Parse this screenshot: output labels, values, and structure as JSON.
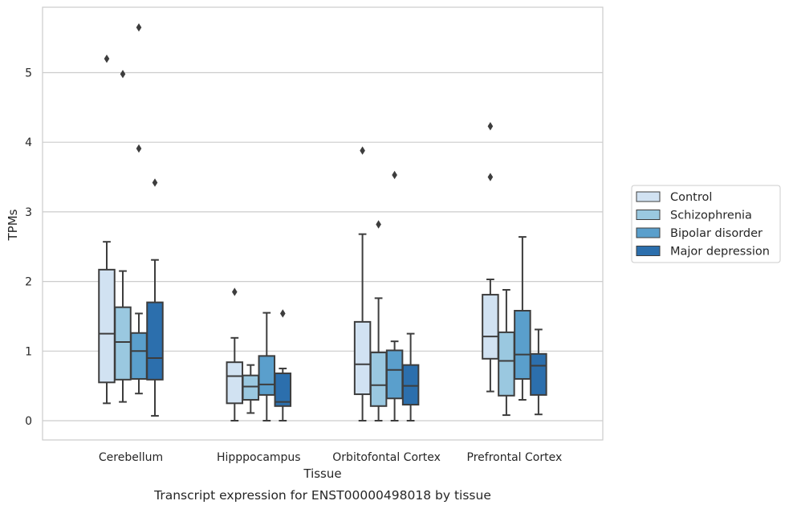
{
  "chart_data": {
    "type": "box",
    "caption": "Transcript expression for ENST00000498018 by tissue",
    "xlabel": "Tissue",
    "ylabel": "TPMs",
    "ylim": [
      -0.27,
      5.95
    ],
    "yticks": [
      0,
      1,
      2,
      3,
      4,
      5
    ],
    "grid": "horizontal",
    "legend_position": "right",
    "categories": [
      "Cerebellum",
      "Hipppocampus",
      "Orbitofontal Cortex",
      "Prefrontal Cortex"
    ],
    "series": [
      {
        "name": "Control",
        "color": "#d1e2f2",
        "boxes": [
          {
            "whisker_low": 0.25,
            "q1": 0.55,
            "median": 1.25,
            "q3": 2.17,
            "whisker_high": 2.57,
            "outliers": [
              5.2
            ]
          },
          {
            "whisker_low": 0.0,
            "q1": 0.25,
            "median": 0.64,
            "q3": 0.84,
            "whisker_high": 1.19,
            "outliers": [
              1.85
            ]
          },
          {
            "whisker_low": 0.0,
            "q1": 0.38,
            "median": 0.81,
            "q3": 1.42,
            "whisker_high": 2.68,
            "outliers": [
              3.88
            ]
          },
          {
            "whisker_low": 0.42,
            "q1": 0.89,
            "median": 1.21,
            "q3": 1.81,
            "whisker_high": 2.03,
            "outliers": [
              4.23,
              3.5
            ]
          }
        ]
      },
      {
        "name": "Schizophrenia",
        "color": "#9ac8e0",
        "boxes": [
          {
            "whisker_low": 0.27,
            "q1": 0.59,
            "median": 1.13,
            "q3": 1.63,
            "whisker_high": 2.15,
            "outliers": [
              4.98
            ]
          },
          {
            "whisker_low": 0.11,
            "q1": 0.3,
            "median": 0.49,
            "q3": 0.65,
            "whisker_high": 0.8,
            "outliers": []
          },
          {
            "whisker_low": 0.0,
            "q1": 0.21,
            "median": 0.51,
            "q3": 0.98,
            "whisker_high": 1.76,
            "outliers": [
              2.82
            ]
          },
          {
            "whisker_low": 0.08,
            "q1": 0.36,
            "median": 0.86,
            "q3": 1.27,
            "whisker_high": 1.88,
            "outliers": []
          }
        ]
      },
      {
        "name": "Bipolar disorder",
        "color": "#5a9fcc",
        "boxes": [
          {
            "whisker_low": 0.39,
            "q1": 0.6,
            "median": 1.0,
            "q3": 1.26,
            "whisker_high": 1.54,
            "outliers": [
              5.65,
              3.91
            ]
          },
          {
            "whisker_low": 0.0,
            "q1": 0.37,
            "median": 0.52,
            "q3": 0.93,
            "whisker_high": 1.55,
            "outliers": []
          },
          {
            "whisker_low": 0.0,
            "q1": 0.32,
            "median": 0.73,
            "q3": 1.01,
            "whisker_high": 1.14,
            "outliers": [
              3.53
            ]
          },
          {
            "whisker_low": 0.3,
            "q1": 0.6,
            "median": 0.95,
            "q3": 1.58,
            "whisker_high": 2.64,
            "outliers": []
          }
        ]
      },
      {
        "name": "Major depression",
        "color": "#2c6fad",
        "boxes": [
          {
            "whisker_low": 0.07,
            "q1": 0.59,
            "median": 0.9,
            "q3": 1.7,
            "whisker_high": 2.31,
            "outliers": [
              3.42
            ]
          },
          {
            "whisker_low": 0.0,
            "q1": 0.21,
            "median": 0.27,
            "q3": 0.68,
            "whisker_high": 0.75,
            "outliers": [
              1.54
            ]
          },
          {
            "whisker_low": 0.0,
            "q1": 0.23,
            "median": 0.5,
            "q3": 0.8,
            "whisker_high": 1.25,
            "outliers": []
          },
          {
            "whisker_low": 0.09,
            "q1": 0.37,
            "median": 0.79,
            "q3": 0.96,
            "whisker_high": 1.31,
            "outliers": []
          }
        ]
      }
    ]
  }
}
